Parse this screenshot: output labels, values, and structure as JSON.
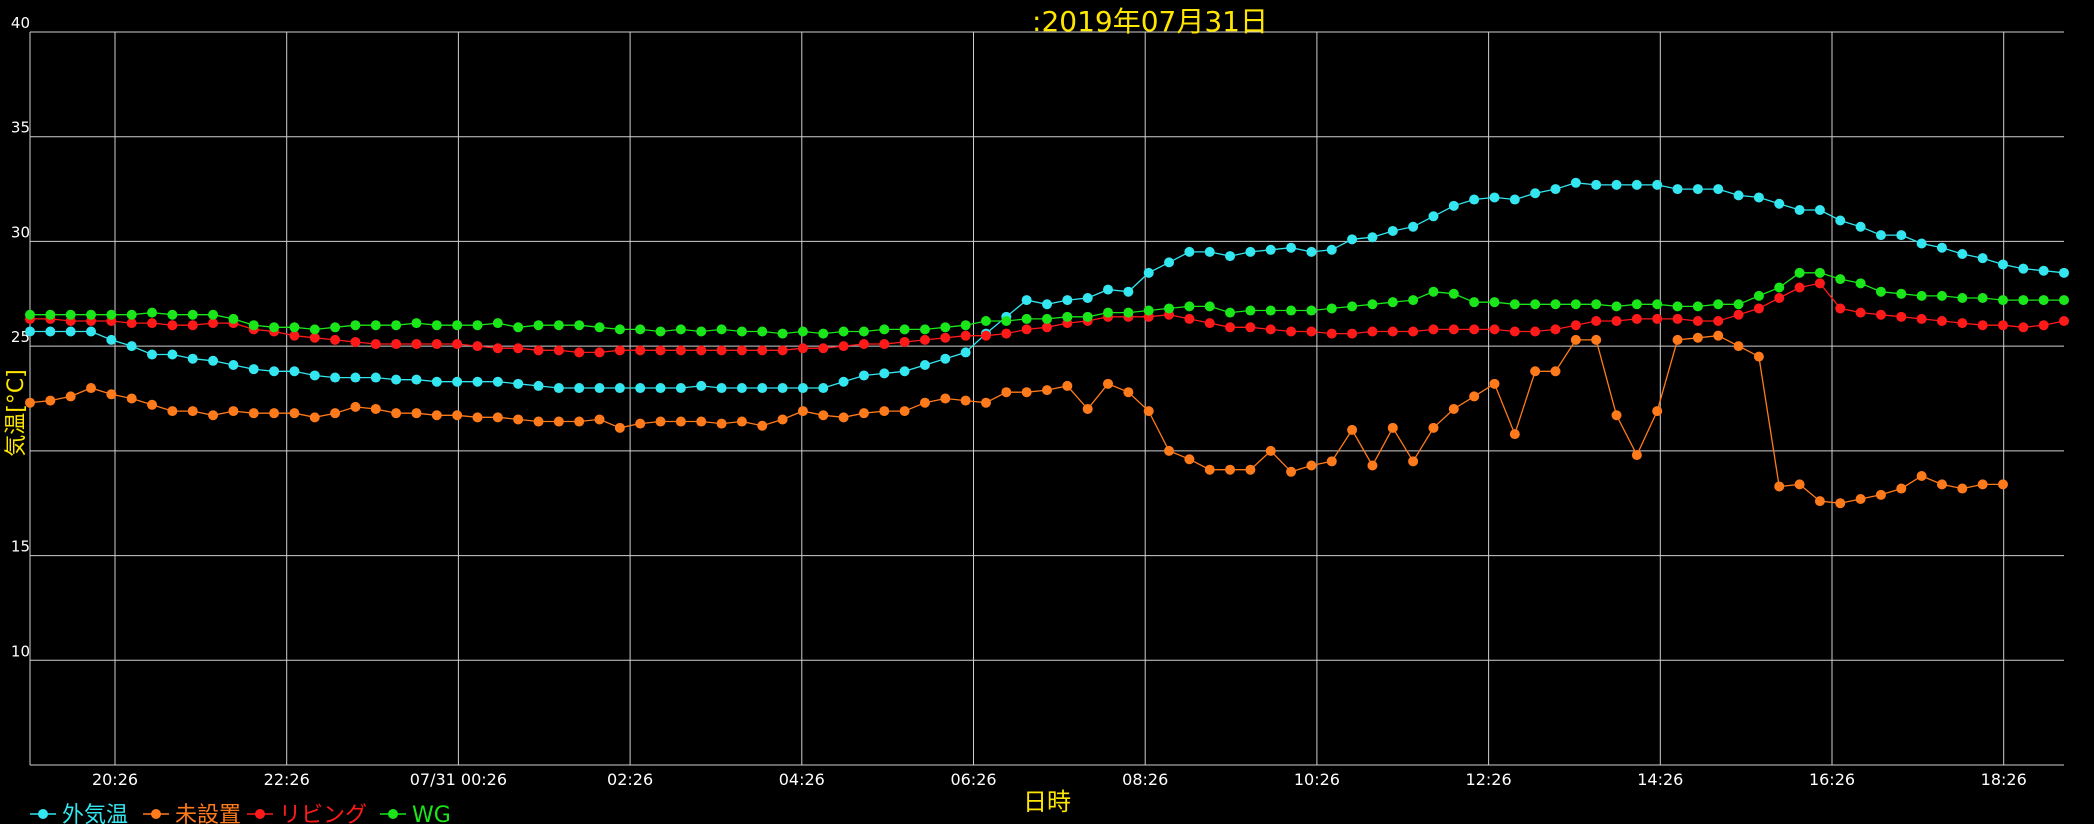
{
  "chart_data": {
    "type": "line",
    "title": ":2019年07月31日",
    "xlabel": "日時",
    "ylabel": "気温[°C]",
    "ylim": [
      5,
      40
    ],
    "y_ticks": [
      10,
      15,
      20,
      25,
      30,
      35,
      40
    ],
    "y_tick_labels": [
      "10",
      "15",
      "",
      "25",
      "30",
      "35",
      "40"
    ],
    "x_tick_labels": [
      "20:26",
      "22:26",
      "07/31 00:26",
      "02:26",
      "04:26",
      "06:26",
      "08:26",
      "10:26",
      "12:26",
      "14:26",
      "16:26",
      "18:26"
    ],
    "grid": true,
    "legend_position": "bottom-left",
    "series": [
      {
        "name": "外気温",
        "color": "#33e6f0",
        "values": [
          25.7,
          25.7,
          25.7,
          25.7,
          25.3,
          25.0,
          24.6,
          24.6,
          24.4,
          24.3,
          24.1,
          23.9,
          23.8,
          23.8,
          23.6,
          23.5,
          23.5,
          23.5,
          23.4,
          23.4,
          23.3,
          23.3,
          23.3,
          23.3,
          23.2,
          23.1,
          23.0,
          23.0,
          23.0,
          23.0,
          23.0,
          23.0,
          23.0,
          23.1,
          23.0,
          23.0,
          23.0,
          23.0,
          23.0,
          23.0,
          23.3,
          23.6,
          23.7,
          23.8,
          24.1,
          24.4,
          24.7,
          25.6,
          26.4,
          27.2,
          27.0,
          27.2,
          27.3,
          27.7,
          27.6,
          28.5,
          29.0,
          29.5,
          29.5,
          29.3,
          29.5,
          29.6,
          29.7,
          29.5,
          29.6,
          30.1,
          30.2,
          30.5,
          30.7,
          31.2,
          31.7,
          32.0,
          32.1,
          32.0,
          32.3,
          32.5,
          32.8,
          32.7,
          32.7,
          32.7,
          32.7,
          32.5,
          32.5,
          32.5,
          32.2,
          32.1,
          31.8,
          31.5,
          31.5,
          31.0,
          30.7,
          30.3,
          30.3,
          29.9,
          29.7,
          29.4,
          29.2,
          28.9,
          28.7,
          28.6,
          28.5
        ]
      },
      {
        "name": "未設置",
        "color": "#ff7a1a",
        "values": [
          22.3,
          22.4,
          22.6,
          23.0,
          22.7,
          22.5,
          22.2,
          21.9,
          21.9,
          21.7,
          21.9,
          21.8,
          21.8,
          21.8,
          21.6,
          21.8,
          22.1,
          22.0,
          21.8,
          21.8,
          21.7,
          21.7,
          21.6,
          21.6,
          21.5,
          21.4,
          21.4,
          21.4,
          21.5,
          21.1,
          21.3,
          21.4,
          21.4,
          21.4,
          21.3,
          21.4,
          21.2,
          21.5,
          21.9,
          21.7,
          21.6,
          21.8,
          21.9,
          21.9,
          22.3,
          22.5,
          22.4,
          22.3,
          22.8,
          22.8,
          22.9,
          23.1,
          22.0,
          23.2,
          22.8,
          21.9,
          20.0,
          19.6,
          19.1,
          19.1,
          19.1,
          20.0,
          19.0,
          19.3,
          19.5,
          21.0,
          19.3,
          21.1,
          19.5,
          21.1,
          22.0,
          22.6,
          23.2,
          20.8,
          23.8,
          23.8,
          25.3,
          25.3,
          21.7,
          19.8,
          21.9,
          25.3,
          25.4,
          25.5,
          25.0,
          24.5,
          18.3,
          18.4,
          17.6,
          17.5,
          17.7,
          17.9,
          18.2,
          18.8,
          18.4,
          18.2,
          18.4,
          18.4
        ]
      },
      {
        "name": "リビング",
        "color": "#ff1a1a",
        "values": [
          26.3,
          26.3,
          26.2,
          26.2,
          26.2,
          26.1,
          26.1,
          26.0,
          26.0,
          26.1,
          26.1,
          25.8,
          25.7,
          25.5,
          25.4,
          25.3,
          25.2,
          25.1,
          25.1,
          25.1,
          25.1,
          25.1,
          25.0,
          24.9,
          24.9,
          24.8,
          24.8,
          24.7,
          24.7,
          24.8,
          24.8,
          24.8,
          24.8,
          24.8,
          24.8,
          24.8,
          24.8,
          24.8,
          24.9,
          24.9,
          25.0,
          25.1,
          25.1,
          25.2,
          25.3,
          25.4,
          25.5,
          25.5,
          25.6,
          25.8,
          25.9,
          26.1,
          26.2,
          26.4,
          26.4,
          26.4,
          26.5,
          26.3,
          26.1,
          25.9,
          25.9,
          25.8,
          25.7,
          25.7,
          25.6,
          25.6,
          25.7,
          25.7,
          25.7,
          25.8,
          25.8,
          25.8,
          25.8,
          25.7,
          25.7,
          25.8,
          26.0,
          26.2,
          26.2,
          26.3,
          26.3,
          26.3,
          26.2,
          26.2,
          26.5,
          26.8,
          27.3,
          27.8,
          28.0,
          26.8,
          26.6,
          26.5,
          26.4,
          26.3,
          26.2,
          26.1,
          26.0,
          26.0,
          25.9,
          26.0,
          26.2
        ]
      },
      {
        "name": "WG",
        "color": "#1ae61a",
        "values": [
          26.5,
          26.5,
          26.5,
          26.5,
          26.5,
          26.5,
          26.6,
          26.5,
          26.5,
          26.5,
          26.3,
          26.0,
          25.9,
          25.9,
          25.8,
          25.9,
          26.0,
          26.0,
          26.0,
          26.1,
          26.0,
          26.0,
          26.0,
          26.1,
          25.9,
          26.0,
          26.0,
          26.0,
          25.9,
          25.8,
          25.8,
          25.7,
          25.8,
          25.7,
          25.8,
          25.7,
          25.7,
          25.6,
          25.7,
          25.6,
          25.7,
          25.7,
          25.8,
          25.8,
          25.8,
          25.9,
          26.0,
          26.2,
          26.2,
          26.3,
          26.3,
          26.4,
          26.4,
          26.6,
          26.6,
          26.7,
          26.8,
          26.9,
          26.9,
          26.6,
          26.7,
          26.7,
          26.7,
          26.7,
          26.8,
          26.9,
          27.0,
          27.1,
          27.2,
          27.6,
          27.5,
          27.1,
          27.1,
          27.0,
          27.0,
          27.0,
          27.0,
          27.0,
          26.9,
          27.0,
          27.0,
          26.9,
          26.9,
          27.0,
          27.0,
          27.4,
          27.8,
          28.5,
          28.5,
          28.2,
          28.0,
          27.6,
          27.5,
          27.4,
          27.4,
          27.3,
          27.3,
          27.2,
          27.2,
          27.2,
          27.2
        ]
      }
    ]
  }
}
